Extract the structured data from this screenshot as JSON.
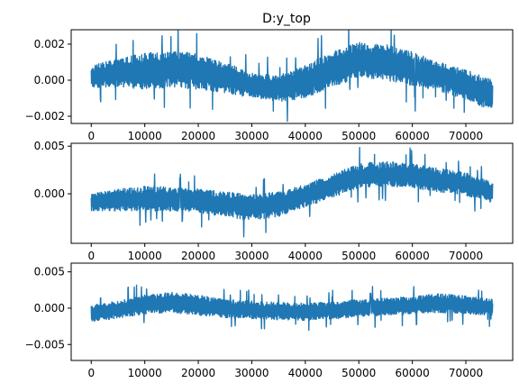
{
  "figure": {
    "title": "D:y_top"
  },
  "chart_data": [
    {
      "type": "line",
      "title": "D:y_top",
      "xlim": [
        -3750,
        78750
      ],
      "ylim": [
        -0.0024,
        0.0028
      ],
      "xticks": [
        0,
        10000,
        20000,
        30000,
        40000,
        50000,
        60000,
        70000
      ],
      "xtick_labels": [
        "0",
        "10000",
        "20000",
        "30000",
        "40000",
        "50000",
        "60000",
        "70000"
      ],
      "yticks": [
        -0.002,
        0.0,
        0.002
      ],
      "ytick_labels": [
        "−0.002",
        "0.000",
        "0.002"
      ],
      "color": "#1f77b4",
      "grid": false,
      "series": [
        {
          "x": [
            0,
            5000,
            10000,
            15000,
            20000,
            25000,
            30000,
            35000,
            40000,
            45000,
            50000,
            55000,
            60000,
            65000,
            70000,
            75000
          ],
          "y_center": [
            0.0002,
            0.0004,
            0.0005,
            0.0006,
            0.0005,
            0.0002,
            -0.0003,
            -0.0004,
            -0.0001,
            0.0006,
            0.0011,
            0.001,
            0.0007,
            0.0003,
            -0.0002,
            -0.001
          ],
          "y_upper": [
            0.0008,
            0.0012,
            0.0015,
            0.0016,
            0.0015,
            0.001,
            0.0004,
            0.0003,
            0.0008,
            0.0016,
            0.0021,
            0.002,
            0.0016,
            0.001,
            0.0006,
            0.0
          ],
          "y_lower": [
            -0.0004,
            -0.0004,
            -0.0005,
            -0.0004,
            -0.0005,
            -0.0007,
            -0.001,
            -0.0012,
            -0.001,
            -0.0004,
            0.0001,
            0.0,
            -0.0003,
            -0.0006,
            -0.0011,
            -0.0017
          ]
        }
      ]
    },
    {
      "type": "line",
      "xlim": [
        -3750,
        78750
      ],
      "ylim": [
        -0.0052,
        0.0053
      ],
      "xticks": [
        0,
        10000,
        20000,
        30000,
        40000,
        50000,
        60000,
        70000
      ],
      "xtick_labels": [
        "0",
        "10000",
        "20000",
        "30000",
        "40000",
        "50000",
        "60000",
        "70000"
      ],
      "yticks": [
        0.0,
        0.005
      ],
      "ytick_labels": [
        "0.000",
        "0.005"
      ],
      "color": "#1f77b4",
      "grid": false,
      "series": [
        {
          "x": [
            0,
            5000,
            10000,
            15000,
            20000,
            25000,
            30000,
            35000,
            40000,
            45000,
            50000,
            55000,
            60000,
            65000,
            70000,
            75000
          ],
          "y_center": [
            -0.0008,
            -0.0007,
            -0.0006,
            -0.0006,
            -0.0008,
            -0.0011,
            -0.0013,
            -0.001,
            -0.0002,
            0.0008,
            0.0018,
            0.002,
            0.0018,
            0.0014,
            0.001,
            0.0002
          ],
          "y_upper": [
            0.0,
            0.0005,
            0.0008,
            0.0007,
            0.0005,
            0.0002,
            -0.0001,
            0.0002,
            0.001,
            0.002,
            0.0032,
            0.0034,
            0.0032,
            0.0027,
            0.0022,
            0.0012
          ],
          "y_lower": [
            -0.0018,
            -0.0018,
            -0.0018,
            -0.0018,
            -0.002,
            -0.0024,
            -0.0028,
            -0.0024,
            -0.0014,
            -0.0004,
            0.0006,
            0.0008,
            0.0006,
            0.0002,
            -0.0002,
            -0.001
          ]
        }
      ]
    },
    {
      "type": "line",
      "xlim": [
        -3750,
        78750
      ],
      "ylim": [
        -0.0072,
        0.0062
      ],
      "xticks": [
        0,
        10000,
        20000,
        30000,
        40000,
        50000,
        60000,
        70000
      ],
      "xtick_labels": [
        "0",
        "10000",
        "20000",
        "30000",
        "40000",
        "50000",
        "60000",
        "70000"
      ],
      "yticks": [
        -0.005,
        0.0,
        0.005
      ],
      "ytick_labels": [
        "−0.005",
        "0.000",
        "0.005"
      ],
      "color": "#1f77b4",
      "grid": false,
      "series": [
        {
          "x": [
            0,
            5000,
            10000,
            15000,
            20000,
            25000,
            30000,
            35000,
            40000,
            45000,
            50000,
            55000,
            60000,
            65000,
            70000,
            75000
          ],
          "y_center": [
            -0.0006,
            -0.0002,
            0.0005,
            0.0008,
            0.0004,
            0.0,
            -0.0002,
            -0.0004,
            -0.0005,
            -0.0003,
            0.0,
            0.0002,
            0.0004,
            0.0007,
            0.0005,
            0.0002
          ],
          "y_upper": [
            0.0004,
            0.001,
            0.0018,
            0.0022,
            0.0018,
            0.0012,
            0.001,
            0.0008,
            0.0007,
            0.0009,
            0.0012,
            0.0014,
            0.0016,
            0.002,
            0.0017,
            0.0012
          ],
          "y_lower": [
            -0.0018,
            -0.0014,
            -0.0008,
            -0.0006,
            -0.001,
            -0.0013,
            -0.0015,
            -0.0016,
            -0.0017,
            -0.0015,
            -0.0012,
            -0.001,
            -0.0008,
            -0.0006,
            -0.0008,
            -0.001
          ]
        }
      ]
    }
  ]
}
